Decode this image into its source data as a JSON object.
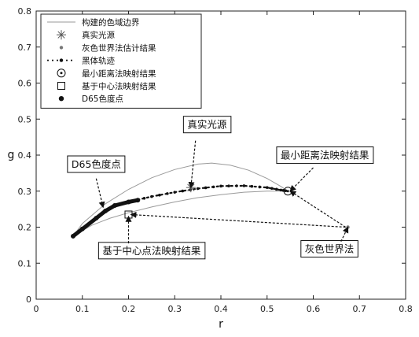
{
  "chart_data": {
    "type": "line",
    "xlabel": "r",
    "ylabel": "g",
    "xlim": [
      0,
      0.8
    ],
    "ylim": [
      0,
      0.8
    ],
    "x_ticks": [
      0,
      0.1,
      0.2,
      0.3,
      0.4,
      0.5,
      0.6,
      0.7,
      0.8
    ],
    "y_ticks": [
      0,
      0.1,
      0.2,
      0.3,
      0.4,
      0.5,
      0.6,
      0.7,
      0.8
    ],
    "x_tick_labels": [
      "0",
      "0.1",
      "0.2",
      "0.3",
      "0.4",
      "0.5",
      "0.6",
      "0.7",
      "0.8"
    ],
    "y_tick_labels": [
      "0",
      "0.1",
      "0.2",
      "0.3",
      "0.4",
      "0.5",
      "0.6",
      "0.7",
      "0.8"
    ],
    "grid": false,
    "legend_position": "top-left",
    "legend": [
      {
        "label": "构建的色域边界",
        "marker": "line"
      },
      {
        "label": "真实光源",
        "marker": "asterisk"
      },
      {
        "label": "灰色世界法估计结果",
        "marker": "small-dot"
      },
      {
        "label": "黑体轨迹",
        "marker": "dash-dot-dots"
      },
      {
        "label": "最小距离法映射结果",
        "marker": "circle"
      },
      {
        "label": "基于中心法映射结果",
        "marker": "square"
      },
      {
        "label": "D65色度点",
        "marker": "filled-dot"
      }
    ],
    "series": [
      {
        "name": "构建的色域边界",
        "style": "thin-line",
        "color": "#9a9a9a",
        "segments": [
          [
            [
              0.08,
              0.175
            ],
            [
              0.1,
              0.21
            ],
            [
              0.15,
              0.265
            ],
            [
              0.2,
              0.305
            ],
            [
              0.25,
              0.337
            ],
            [
              0.3,
              0.36
            ],
            [
              0.35,
              0.375
            ],
            [
              0.38,
              0.378
            ],
            [
              0.42,
              0.372
            ],
            [
              0.46,
              0.358
            ],
            [
              0.5,
              0.335
            ],
            [
              0.53,
              0.313
            ],
            [
              0.545,
              0.3
            ]
          ],
          [
            [
              0.08,
              0.175
            ],
            [
              0.12,
              0.205
            ],
            [
              0.16,
              0.225
            ],
            [
              0.2,
              0.24
            ],
            [
              0.25,
              0.256
            ],
            [
              0.3,
              0.27
            ],
            [
              0.35,
              0.282
            ],
            [
              0.4,
              0.29
            ],
            [
              0.45,
              0.297
            ],
            [
              0.5,
              0.3
            ],
            [
              0.545,
              0.3
            ]
          ]
        ]
      },
      {
        "name": "黑体轨迹",
        "style": "dash-dot",
        "color": "#111111",
        "points": [
          [
            0.08,
            0.175
          ],
          [
            0.1,
            0.195
          ],
          [
            0.13,
            0.225
          ],
          [
            0.15,
            0.245
          ],
          [
            0.17,
            0.26
          ],
          [
            0.2,
            0.27
          ],
          [
            0.25,
            0.285
          ],
          [
            0.3,
            0.297
          ],
          [
            0.35,
            0.307
          ],
          [
            0.4,
            0.314
          ],
          [
            0.45,
            0.315
          ],
          [
            0.5,
            0.31
          ],
          [
            0.53,
            0.303
          ],
          [
            0.545,
            0.3
          ]
        ]
      },
      {
        "name": "D65色度点",
        "style": "thick-line",
        "color": "#111111",
        "points": [
          [
            0.08,
            0.175
          ],
          [
            0.1,
            0.195
          ],
          [
            0.13,
            0.225
          ],
          [
            0.15,
            0.245
          ],
          [
            0.17,
            0.26
          ],
          [
            0.2,
            0.27
          ],
          [
            0.22,
            0.275
          ]
        ]
      }
    ],
    "markers": [
      {
        "name": "真实光源",
        "marker": "asterisk",
        "x": 0.335,
        "y": 0.31
      },
      {
        "name": "灰色世界法估计结果",
        "marker": "small-dot",
        "x": 0.675,
        "y": 0.2
      },
      {
        "name": "最小距离法映射结果",
        "marker": "circle",
        "x": 0.545,
        "y": 0.3
      },
      {
        "name": "基于中心法映射结果",
        "marker": "square",
        "x": 0.2,
        "y": 0.235
      }
    ],
    "annotations": [
      {
        "text": "真实光源",
        "box_at": [
          0.37,
          0.475
        ],
        "arrow_from": [
          0.345,
          0.44
        ],
        "arrow_to": [
          0.335,
          0.31
        ]
      },
      {
        "text": "最小距离法映射结果",
        "box_at": [
          0.625,
          0.39
        ],
        "arrow_from": [
          0.6,
          0.365
        ],
        "arrow_to": [
          0.55,
          0.3
        ]
      },
      {
        "text": "D65色度点",
        "box_at": [
          0.13,
          0.365
        ],
        "arrow_from": [
          0.13,
          0.335
        ],
        "arrow_to": [
          0.145,
          0.255
        ]
      },
      {
        "text": "基于中心点法映射结果",
        "box_at": [
          0.25,
          0.125
        ],
        "arrow_from": [
          0.2,
          0.155
        ],
        "arrow_to": [
          0.2,
          0.23
        ]
      },
      {
        "text": "灰色世界法",
        "box_at": [
          0.635,
          0.13
        ],
        "arrow_from": [
          0.66,
          0.16
        ],
        "arrow_to": [
          0.675,
          0.2
        ]
      }
    ],
    "extra_arrows": [
      {
        "from": [
          0.67,
          0.2
        ],
        "to": [
          0.205,
          0.235
        ]
      },
      {
        "from": [
          0.67,
          0.2
        ],
        "to": [
          0.55,
          0.3
        ]
      }
    ]
  }
}
